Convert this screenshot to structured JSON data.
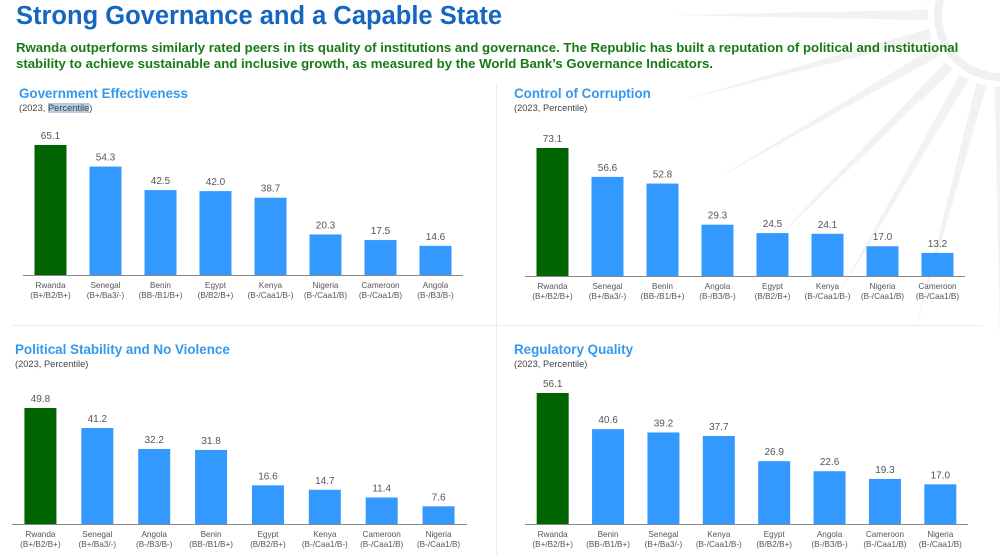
{
  "page": {
    "title": "Strong Governance and a Capable State",
    "subtitle": "Rwanda outperforms similarly rated peers in its quality of institutions and governance. The Republic has built a reputation of political and institutional stability to achieve sustainable and inclusive growth, as measured by the World Bank’s Governance Indicators."
  },
  "colors": {
    "title": "#1566c0",
    "subtitle": "#177a17",
    "panel_title": "#3399ee",
    "highlight_bar": "#006400",
    "peer_bar": "#3399ff",
    "axis": "#888888",
    "label_text": "#555555"
  },
  "panels": [
    {
      "title": "Government Effectiveness",
      "subtitle_prefix": "(2023, ",
      "subtitle_unit": "Percentile",
      "subtitle_suffix": ")",
      "unit_highlighted": true
    },
    {
      "title": "Control of Corruption",
      "subtitle_prefix": "(2023, ",
      "subtitle_unit": "Percentile",
      "subtitle_suffix": ")",
      "unit_highlighted": false
    },
    {
      "title": "Political Stability and No Violence",
      "subtitle_prefix": "(2023, ",
      "subtitle_unit": "Percentile",
      "subtitle_suffix": ")",
      "unit_highlighted": false
    },
    {
      "title": "Regulatory Quality",
      "subtitle_prefix": "(2023, ",
      "subtitle_unit": "Percentile",
      "subtitle_suffix": ")",
      "unit_highlighted": false
    }
  ],
  "chart_data": [
    {
      "type": "bar",
      "title": "Government Effectiveness",
      "subtitle": "(2023, Percentile)",
      "xlabel": "",
      "ylabel": "Percentile",
      "grid": false,
      "categories": [
        "Rwanda",
        "Senegal",
        "Benin",
        "Egypt",
        "Kenya",
        "Nigeria",
        "Cameroon",
        "Angola"
      ],
      "ratings": [
        "(B+/B2/B+)",
        "(B+/Ba3/-)",
        "(BB-/B1/B+)",
        "(B/B2/B+)",
        "(B-/Caa1/B-)",
        "(B-/Caa1/B)",
        "(B-/Caa1/B)",
        "(B-/B3/B-)"
      ],
      "values": [
        65.1,
        54.3,
        42.5,
        42.0,
        38.7,
        20.3,
        17.5,
        14.6
      ],
      "value_labels": [
        "65.1",
        "54.3",
        "42.5",
        "42.0",
        "38.7",
        "20.3",
        "17.5",
        "14.6"
      ],
      "highlight": "Rwanda"
    },
    {
      "type": "bar",
      "title": "Control of Corruption",
      "subtitle": "(2023, Percentile)",
      "xlabel": "",
      "ylabel": "Percentile",
      "grid": false,
      "categories": [
        "Rwanda",
        "Senegal",
        "Benin",
        "Angola",
        "Egypt",
        "Kenya",
        "Nigeria",
        "Cameroon"
      ],
      "ratings": [
        "(B+/B2/B+)",
        "(B+/Ba3/-)",
        "(BB-/B1/B+)",
        "(B-/B3/B-)",
        "(B/B2/B+)",
        "(B-/Caa1/B-)",
        "(B-/Caa1/B)",
        "(B-/Caa1/B)"
      ],
      "values": [
        73.1,
        56.6,
        52.8,
        29.3,
        24.5,
        24.1,
        17.0,
        13.2
      ],
      "value_labels": [
        "73.1",
        "56.6",
        "52.8",
        "29.3",
        "24.5",
        "24.1",
        "17.0",
        "13.2"
      ],
      "highlight": "Rwanda"
    },
    {
      "type": "bar",
      "title": "Political Stability and No Violence",
      "subtitle": "(2023, Percentile)",
      "xlabel": "",
      "ylabel": "Percentile",
      "grid": false,
      "categories": [
        "Rwanda",
        "Senegal",
        "Angola",
        "Benin",
        "Egypt",
        "Kenya",
        "Cameroon",
        "Nigeria"
      ],
      "ratings": [
        "(B+/B2/B+)",
        "(B+/Ba3/-)",
        "(B-/B3/B-)",
        "(BB-/B1/B+)",
        "(B/B2/B+)",
        "(B-/Caa1/B-)",
        "(B-/Caa1/B)",
        "(B-/Caa1/B)"
      ],
      "values": [
        49.8,
        41.2,
        32.2,
        31.8,
        16.6,
        14.7,
        11.4,
        7.6
      ],
      "value_labels": [
        "49.8",
        "41.2",
        "32.2",
        "31.8",
        "16.6",
        "14.7",
        "11.4",
        "7.6"
      ],
      "highlight": "Rwanda"
    },
    {
      "type": "bar",
      "title": "Regulatory Quality",
      "subtitle": "(2023, Percentile)",
      "xlabel": "",
      "ylabel": "Percentile",
      "grid": false,
      "categories": [
        "Rwanda",
        "Benin",
        "Senegal",
        "Kenya",
        "Egypt",
        "Angola",
        "Cameroon",
        "Nigeria"
      ],
      "ratings": [
        "(B+/B2/B+)",
        "(BB-/B1/B+)",
        "(B+/Ba3/-)",
        "(B-/Caa1/B-)",
        "(B/B2/B+)",
        "(B-/B3/B-)",
        "(B-/Caa1/B)",
        "(B-/Caa1/B)"
      ],
      "values": [
        56.1,
        40.6,
        39.2,
        37.7,
        26.9,
        22.6,
        19.3,
        17.0
      ],
      "value_labels": [
        "56.1",
        "40.6",
        "39.2",
        "37.7",
        "26.9",
        "22.6",
        "19.3",
        "17.0"
      ],
      "highlight": "Rwanda"
    }
  ]
}
